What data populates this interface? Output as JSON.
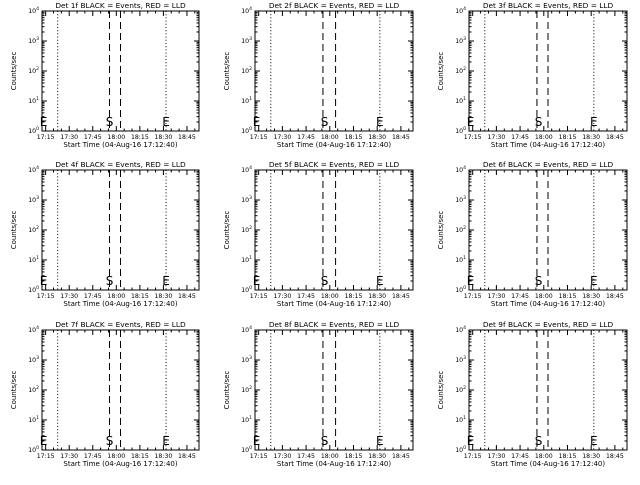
{
  "x_tick_labels": [
    "17:15",
    "17:30",
    "17:45",
    "18:00",
    "18:15",
    "18:30",
    "18:45"
  ],
  "y_tick_labels": [
    {
      "base": "10",
      "exp": "0"
    },
    {
      "base": "10",
      "exp": "1"
    },
    {
      "base": "10",
      "exp": "2"
    },
    {
      "base": "10",
      "exp": "3"
    },
    {
      "base": "10",
      "exp": "4"
    }
  ],
  "chart_data": [
    {
      "type": "line",
      "title": "Det 1f BLACK = Events, RED = LLD",
      "xlabel": "Start Time (04-Aug-16 17:12:40)",
      "ylabel": "Counts/sec",
      "x_range": [
        "17:12:40",
        "18:52:40"
      ],
      "ylim": [
        1,
        10000
      ],
      "y_scale": "log",
      "series": [],
      "markers": [
        {
          "label": "E",
          "x": "17:13:40"
        },
        {
          "label": "S",
          "x": "17:55:40"
        },
        {
          "label": "E",
          "x": "18:31:40"
        }
      ],
      "dotted_lines": [
        "17:22:40",
        "18:31:40"
      ],
      "dashed_lines": [
        "17:55:40",
        "18:02:40"
      ]
    },
    {
      "type": "line",
      "title": "Det 2f BLACK = Events, RED = LLD",
      "xlabel": "Start Time (04-Aug-16 17:12:40)",
      "ylabel": "Counts/sec",
      "x_range": [
        "17:12:40",
        "18:52:40"
      ],
      "ylim": [
        1,
        10000
      ],
      "y_scale": "log",
      "series": [],
      "markers": [
        {
          "label": "E",
          "x": "17:13:40"
        },
        {
          "label": "S",
          "x": "17:56:40"
        },
        {
          "label": "E",
          "x": "18:31:40"
        }
      ],
      "dotted_lines": [
        "17:22:40",
        "18:31:40"
      ],
      "dashed_lines": [
        "17:55:40",
        "18:03:40"
      ]
    },
    {
      "type": "line",
      "title": "Det 3f BLACK = Events, RED = LLD",
      "xlabel": "Start Time (04-Aug-16 17:12:40)",
      "ylabel": "Counts/sec",
      "x_range": [
        "17:12:40",
        "18:52:40"
      ],
      "ylim": [
        1,
        10000
      ],
      "y_scale": "log",
      "series": [],
      "markers": [
        {
          "label": "E",
          "x": "17:13:40"
        },
        {
          "label": "S",
          "x": "17:56:40"
        },
        {
          "label": "E",
          "x": "18:31:40"
        }
      ],
      "dotted_lines": [
        "17:22:40",
        "18:31:40"
      ],
      "dashed_lines": [
        "17:55:40",
        "18:02:40"
      ]
    },
    {
      "type": "line",
      "title": "Det 4f BLACK = Events, RED = LLD",
      "xlabel": "Start Time (04-Aug-16 17:12:40)",
      "ylabel": "Counts/sec",
      "x_range": [
        "17:12:40",
        "18:52:40"
      ],
      "ylim": [
        1,
        10000
      ],
      "y_scale": "log",
      "series": [],
      "markers": [
        {
          "label": "E",
          "x": "17:13:40"
        },
        {
          "label": "S",
          "x": "17:55:40"
        },
        {
          "label": "E",
          "x": "18:31:40"
        }
      ],
      "dotted_lines": [
        "17:22:40",
        "18:31:40"
      ],
      "dashed_lines": [
        "17:55:40",
        "18:02:40"
      ]
    },
    {
      "type": "line",
      "title": "Det 5f BLACK = Events, RED = LLD",
      "xlabel": "Start Time (04-Aug-16 17:12:40)",
      "ylabel": "Counts/sec",
      "x_range": [
        "17:12:40",
        "18:52:40"
      ],
      "ylim": [
        1,
        10000
      ],
      "y_scale": "log",
      "series": [],
      "markers": [
        {
          "label": "E",
          "x": "17:13:40"
        },
        {
          "label": "S",
          "x": "17:56:40"
        },
        {
          "label": "E",
          "x": "18:31:40"
        }
      ],
      "dotted_lines": [
        "17:22:40",
        "18:31:40"
      ],
      "dashed_lines": [
        "17:55:40",
        "18:03:40"
      ]
    },
    {
      "type": "line",
      "title": "Det 6f BLACK = Events, RED = LLD",
      "xlabel": "Start Time (04-Aug-16 17:12:40)",
      "ylabel": "Counts/sec",
      "x_range": [
        "17:12:40",
        "18:52:40"
      ],
      "ylim": [
        1,
        10000
      ],
      "y_scale": "log",
      "series": [],
      "markers": [
        {
          "label": "E",
          "x": "17:13:40"
        },
        {
          "label": "S",
          "x": "17:56:40"
        },
        {
          "label": "E",
          "x": "18:31:40"
        }
      ],
      "dotted_lines": [
        "17:22:40",
        "18:31:40"
      ],
      "dashed_lines": [
        "17:55:40",
        "18:02:40"
      ]
    },
    {
      "type": "line",
      "title": "Det 7f BLACK = Events, RED = LLD",
      "xlabel": "Start Time (04-Aug-16 17:12:40)",
      "ylabel": "Counts/sec",
      "x_range": [
        "17:12:40",
        "18:52:40"
      ],
      "ylim": [
        1,
        10000
      ],
      "y_scale": "log",
      "series": [],
      "markers": [
        {
          "label": "E",
          "x": "17:13:40"
        },
        {
          "label": "S",
          "x": "17:55:40"
        },
        {
          "label": "E",
          "x": "18:31:40"
        }
      ],
      "dotted_lines": [
        "17:22:40",
        "18:31:40"
      ],
      "dashed_lines": [
        "17:55:40",
        "18:02:40"
      ]
    },
    {
      "type": "line",
      "title": "Det 8f BLACK = Events, RED = LLD",
      "xlabel": "Start Time (04-Aug-16 17:12:40)",
      "ylabel": "Counts/sec",
      "x_range": [
        "17:12:40",
        "18:52:40"
      ],
      "ylim": [
        1,
        10000
      ],
      "y_scale": "log",
      "series": [],
      "markers": [
        {
          "label": "E",
          "x": "17:13:40"
        },
        {
          "label": "S",
          "x": "17:56:40"
        },
        {
          "label": "E",
          "x": "18:31:40"
        }
      ],
      "dotted_lines": [
        "17:22:40",
        "18:31:40"
      ],
      "dashed_lines": [
        "17:55:40",
        "18:03:40"
      ]
    },
    {
      "type": "line",
      "title": "Det 9f BLACK = Events, RED = LLD",
      "xlabel": "Start Time (04-Aug-16 17:12:40)",
      "ylabel": "Counts/sec",
      "x_range": [
        "17:12:40",
        "18:52:40"
      ],
      "ylim": [
        1,
        10000
      ],
      "y_scale": "log",
      "series": [],
      "markers": [
        {
          "label": "E",
          "x": "17:13:40"
        },
        {
          "label": "S",
          "x": "17:56:40"
        },
        {
          "label": "E",
          "x": "18:31:40"
        }
      ],
      "dotted_lines": [
        "17:22:40",
        "18:31:40"
      ],
      "dashed_lines": [
        "17:55:40",
        "18:02:40"
      ]
    }
  ]
}
